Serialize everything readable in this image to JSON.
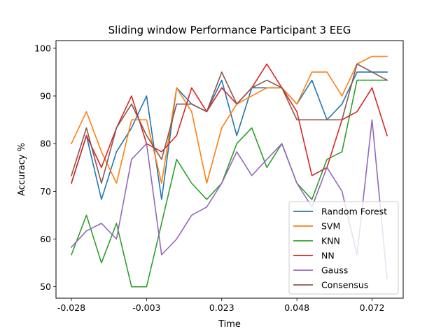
{
  "chart_data": {
    "type": "line",
    "title": "Sliding window Performance Participant 3 EEG",
    "xlabel": "Time",
    "ylabel": "Accuracy %",
    "xtick_labels": [
      "-0.028",
      "-0.003",
      "0.023",
      "0.048",
      "0.072"
    ],
    "yticks": [
      50,
      60,
      70,
      80,
      90,
      100
    ],
    "ylim": [
      47.6,
      101.6
    ],
    "grid": false,
    "legend_position": "bottom-right",
    "series": [
      {
        "name": "Random Forest",
        "color": "#1f77b4",
        "values": [
          71.7,
          81.7,
          68.3,
          78.3,
          83.3,
          90.0,
          68.3,
          91.7,
          88.3,
          86.7,
          93.3,
          81.7,
          91.7,
          91.7,
          91.7,
          88.3,
          93.3,
          85.0,
          88.3,
          95.0,
          95.0,
          95.0
        ]
      },
      {
        "name": "SVM",
        "color": "#ff7f0e",
        "values": [
          80.0,
          86.7,
          78.3,
          71.7,
          85.0,
          85.0,
          71.7,
          91.7,
          86.7,
          71.7,
          83.3,
          88.3,
          90.0,
          91.7,
          91.7,
          88.3,
          95.0,
          95.0,
          90.0,
          96.7,
          98.3,
          98.3
        ]
      },
      {
        "name": "KNN",
        "color": "#2ca02c",
        "values": [
          56.7,
          65.0,
          55.0,
          63.3,
          50.0,
          50.0,
          63.3,
          76.7,
          71.7,
          68.3,
          71.7,
          80.0,
          83.3,
          75.0,
          80.0,
          71.7,
          68.3,
          76.7,
          78.3,
          93.3,
          93.3,
          93.3
        ]
      },
      {
        "name": "NN",
        "color": "#d62728",
        "values": [
          71.7,
          81.7,
          75.0,
          83.3,
          90.0,
          80.0,
          78.3,
          81.7,
          91.7,
          86.7,
          91.7,
          88.3,
          91.7,
          96.7,
          91.7,
          86.7,
          73.3,
          75.0,
          85.0,
          86.7,
          91.7,
          81.7
        ]
      },
      {
        "name": "Gauss",
        "color": "#9467bd",
        "values": [
          58.3,
          61.7,
          63.3,
          60.0,
          76.7,
          80.0,
          56.7,
          60.0,
          65.0,
          66.7,
          71.7,
          78.3,
          73.3,
          76.7,
          80.0,
          71.7,
          66.7,
          75.0,
          70.0,
          56.7,
          85.0,
          51.7
        ]
      },
      {
        "name": "Consensus",
        "color": "#8c564b",
        "values": [
          73.3,
          83.3,
          71.7,
          83.3,
          88.3,
          81.7,
          76.7,
          88.3,
          88.3,
          86.7,
          95.0,
          88.3,
          91.7,
          93.3,
          91.7,
          85.0,
          85.0,
          85.0,
          85.0,
          96.7,
          95.0,
          93.3
        ]
      }
    ]
  }
}
